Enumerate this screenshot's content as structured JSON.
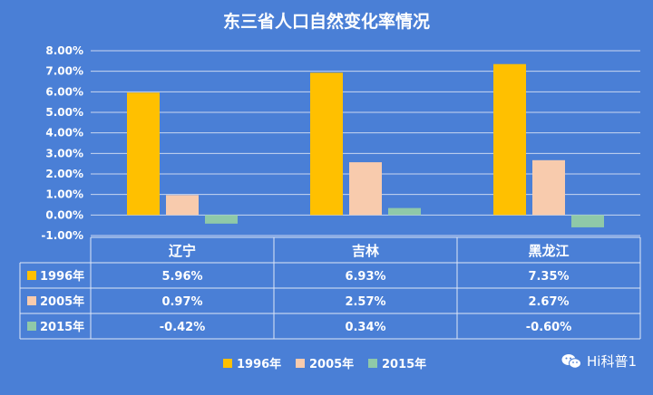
{
  "chart_data": {
    "type": "bar",
    "title": "东三省人口自然变化率情况",
    "categories": [
      "辽宁",
      "吉林",
      "黑龙江"
    ],
    "series": [
      {
        "name": "1996年",
        "values": [
          5.96,
          6.93,
          7.35
        ],
        "labels": [
          "5.96%",
          "6.93%",
          "7.35%"
        ],
        "color": "#ffc000"
      },
      {
        "name": "2005年",
        "values": [
          0.97,
          2.57,
          2.67
        ],
        "labels": [
          "0.97%",
          "2.57%",
          "2.67%"
        ],
        "color": "#f8cbad"
      },
      {
        "name": "2015年",
        "values": [
          -0.42,
          0.34,
          -0.6
        ],
        "labels": [
          "-0.42%",
          "0.34%",
          "-0.60%"
        ],
        "color": "#8fc9a8"
      }
    ],
    "ylim": [
      -1,
      8
    ],
    "yticks": [
      8,
      7,
      6,
      5,
      4,
      3,
      2,
      1,
      0,
      -1
    ],
    "ytick_labels": [
      "8.00%",
      "7.00%",
      "6.00%",
      "5.00%",
      "4.00%",
      "3.00%",
      "2.00%",
      "1.00%",
      "0.00%",
      "-1.00%"
    ],
    "grid": true,
    "legend": "bottom",
    "data_table": true
  },
  "watermark": {
    "text": "Hi科普1"
  }
}
